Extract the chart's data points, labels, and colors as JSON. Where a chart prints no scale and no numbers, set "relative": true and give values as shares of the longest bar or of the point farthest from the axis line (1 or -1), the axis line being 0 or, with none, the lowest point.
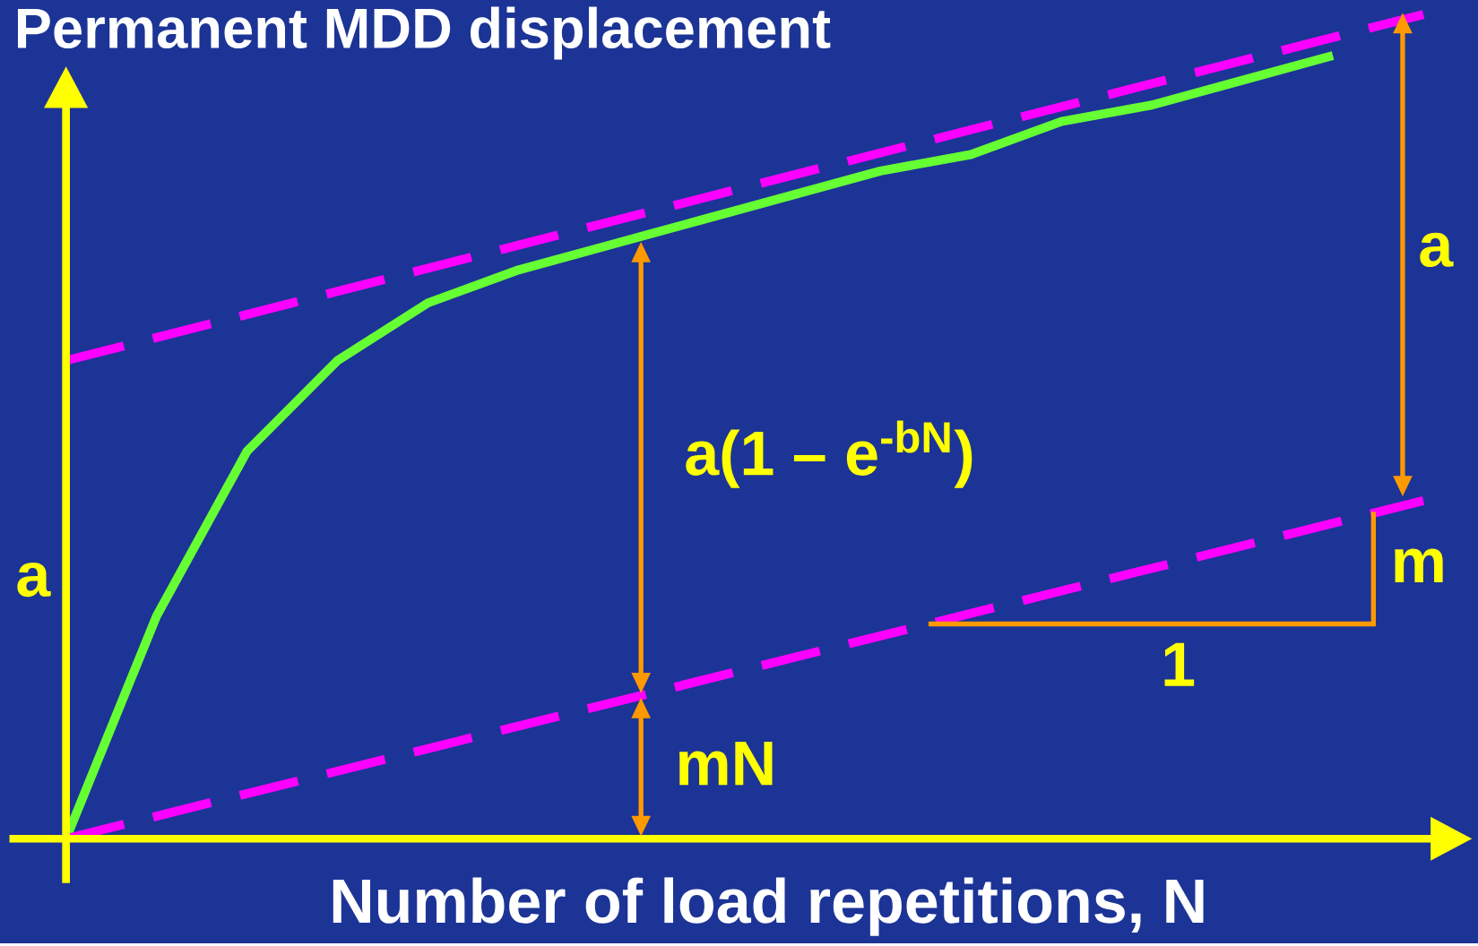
{
  "chart_data": {
    "type": "line",
    "title": "Permanent MDD displacement",
    "xlabel": "Number of load repetitions, N",
    "categories": [
      null,
      null,
      null,
      null,
      null,
      null,
      null,
      null,
      null,
      null,
      null,
      null,
      null,
      null,
      null,
      null
    ],
    "relative": true,
    "marker": "none",
    "series": [
      {
        "color": "#66ff33",
        "line_style": "solid",
        "values": [
          0,
          0.27,
          0.47,
          0.58,
          0.65,
          0.69,
          0.72,
          0.75,
          0.78,
          0.81,
          0.83,
          0.87,
          0.89,
          0.92,
          0.95,
          null
        ]
      },
      {
        "color": "#ff00ff",
        "line_style": "dashed",
        "values": [
          0.58,
          null,
          null,
          null,
          null,
          null,
          null,
          null,
          null,
          null,
          null,
          null,
          null,
          null,
          null,
          1.0
        ]
      },
      {
        "color": "#ff00ff",
        "line_style": "dashed",
        "values": [
          0,
          null,
          null,
          null,
          null,
          null,
          null,
          null,
          null,
          null,
          null,
          null,
          null,
          null,
          null,
          0.41
        ]
      }
    ],
    "annotations": [
      "a",
      "a(1 – e$^{-bN}$)",
      "mN",
      "a",
      "m",
      "1"
    ]
  }
}
